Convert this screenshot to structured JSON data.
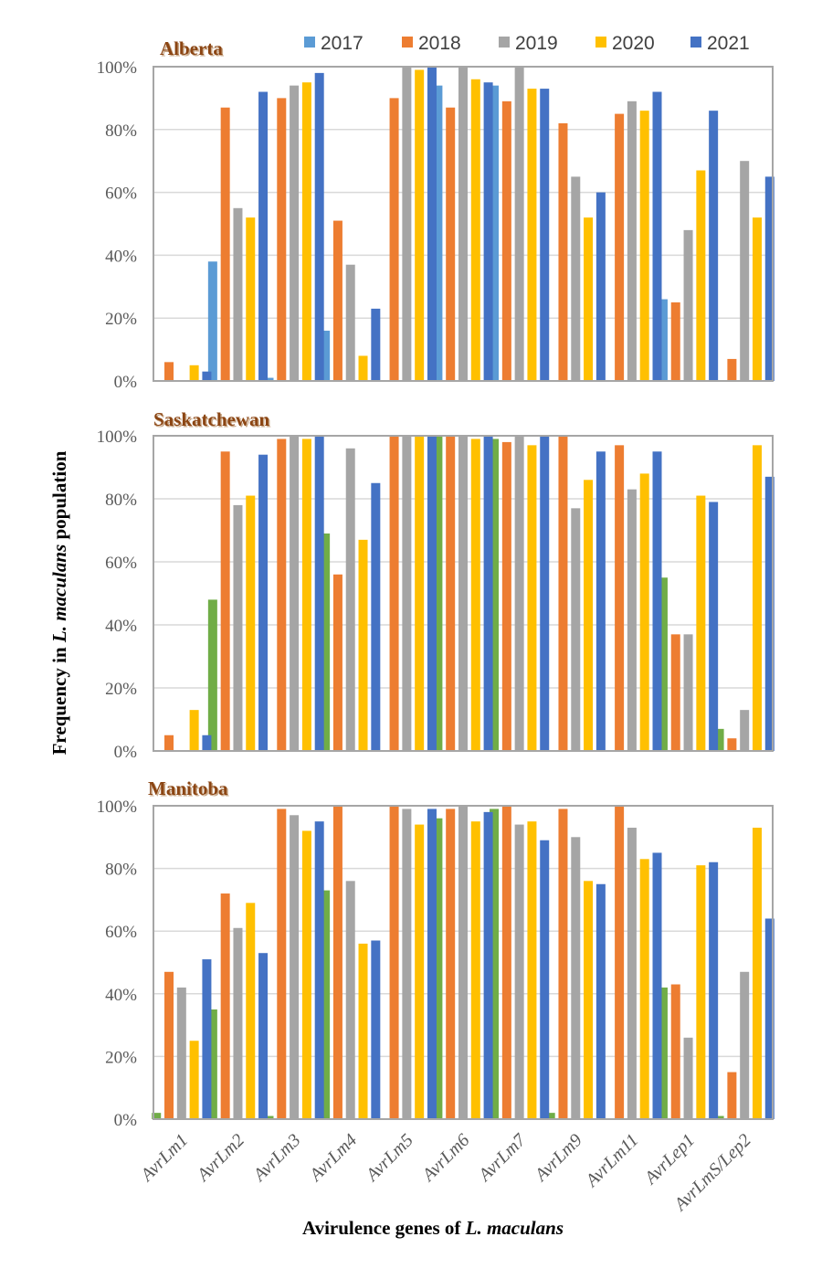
{
  "chart_data": {
    "type": "bar",
    "ylabel_parts": [
      {
        "text": "Frequency in ",
        "italic": false
      },
      {
        "text": "L. maculans",
        "italic": true
      },
      {
        "text": " population",
        "italic": false
      }
    ],
    "xlabel_parts": [
      {
        "text": "Avirulence genes of ",
        "italic": false
      },
      {
        "text": "L. maculans",
        "italic": true
      }
    ],
    "ylabel": "Frequency in L. maculans population",
    "xlabel": "Avirulence genes of L. maculans",
    "categories": [
      "AvrLm1",
      "AvrLm2",
      "AvrLm3",
      "AvrLm4",
      "AvrLm5",
      "AvrLm6",
      "AvrLm7",
      "AvrLm9",
      "AvrLm11",
      "AvrLep1",
      "AvrLmS/Lep2"
    ],
    "yticks": [
      "0%",
      "20%",
      "40%",
      "60%",
      "80%",
      "100%"
    ],
    "ylim": [
      0,
      100
    ],
    "grid": true,
    "legend": {
      "placement": "top",
      "entries": [
        {
          "label": "2017",
          "color": "#5B9BD5"
        },
        {
          "label": "2018",
          "color": "#ED7D31"
        },
        {
          "label": "2019",
          "color": "#A5A5A5"
        },
        {
          "label": "2020",
          "color": "#FFC000"
        },
        {
          "label": "2021",
          "color": "#4472C4"
        }
      ]
    },
    "panels": [
      {
        "title": "Alberta",
        "series": [
          {
            "name": "2017",
            "color": "#5B9BD5",
            "values": [
              0,
              38,
              1,
              16,
              0,
              94,
              94,
              0,
              0,
              26,
              0
            ]
          },
          {
            "name": "2018",
            "color": "#ED7D31",
            "values": [
              6,
              87,
              90,
              51,
              90,
              87,
              89,
              82,
              85,
              25,
              7
            ]
          },
          {
            "name": "2019",
            "color": "#A5A5A5",
            "values": [
              0,
              55,
              94,
              37,
              100,
              100,
              100,
              65,
              89,
              48,
              70
            ]
          },
          {
            "name": "2020",
            "color": "#FFC000",
            "values": [
              5,
              52,
              95,
              8,
              99,
              96,
              93,
              52,
              86,
              67,
              52
            ]
          },
          {
            "name": "2021",
            "color": "#4472C4",
            "values": [
              3,
              92,
              98,
              23,
              100,
              95,
              93,
              60,
              92,
              86,
              65
            ]
          }
        ]
      },
      {
        "title": "Saskatchewan",
        "series": [
          {
            "name": "2017",
            "color": "#70AD47",
            "values": [
              0,
              48,
              0,
              69,
              0,
              100,
              99,
              0,
              0,
              55,
              7
            ]
          },
          {
            "name": "2018",
            "color": "#ED7D31",
            "values": [
              5,
              95,
              99,
              56,
              100,
              100,
              98,
              100,
              97,
              37,
              4
            ]
          },
          {
            "name": "2019",
            "color": "#A5A5A5",
            "values": [
              0,
              78,
              100,
              96,
              100,
              100,
              100,
              77,
              83,
              37,
              13
            ]
          },
          {
            "name": "2020",
            "color": "#FFC000",
            "values": [
              13,
              81,
              99,
              67,
              100,
              99,
              97,
              86,
              88,
              81,
              97
            ]
          },
          {
            "name": "2021",
            "color": "#4472C4",
            "values": [
              5,
              94,
              100,
              85,
              100,
              100,
              100,
              95,
              95,
              79,
              87
            ]
          }
        ]
      },
      {
        "title": "Manitoba",
        "series": [
          {
            "name": "2017",
            "color": "#70AD47",
            "values": [
              2,
              35,
              1,
              73,
              0,
              96,
              99,
              2,
              0,
              42,
              1
            ]
          },
          {
            "name": "2018",
            "color": "#ED7D31",
            "values": [
              47,
              72,
              99,
              100,
              100,
              99,
              100,
              99,
              100,
              43,
              15
            ]
          },
          {
            "name": "2019",
            "color": "#A5A5A5",
            "values": [
              42,
              61,
              97,
              76,
              99,
              100,
              94,
              90,
              93,
              26,
              47
            ]
          },
          {
            "name": "2020",
            "color": "#FFC000",
            "values": [
              25,
              69,
              92,
              56,
              94,
              95,
              95,
              76,
              83,
              81,
              93
            ]
          },
          {
            "name": "2021",
            "color": "#4472C4",
            "values": [
              51,
              53,
              95,
              57,
              99,
              98,
              89,
              75,
              85,
              82,
              64
            ]
          }
        ]
      }
    ]
  }
}
